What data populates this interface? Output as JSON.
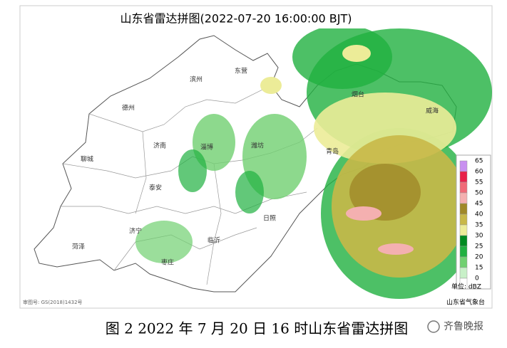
{
  "title": "山东省雷达拼图(2022-07-20 16:00:00 BJT)",
  "cities": [
    "滨州",
    "东营",
    "德州",
    "烟台",
    "威海",
    "济南",
    "淄博",
    "潍坊",
    "聊城",
    "泰安",
    "青岛",
    "日照",
    "济宁",
    "临沂",
    "菏泽",
    "枣庄"
  ],
  "legend": {
    "unit": "单位: dBZ",
    "levels": [
      {
        "value": 65,
        "color": "#c890f0"
      },
      {
        "value": 60,
        "color": "#e8204a"
      },
      {
        "value": 55,
        "color": "#f06a78"
      },
      {
        "value": 50,
        "color": "#f4b0b0"
      },
      {
        "value": 45,
        "color": "#a08828"
      },
      {
        "value": 40,
        "color": "#c8b848"
      },
      {
        "value": 35,
        "color": "#ecec98"
      },
      {
        "value": 30,
        "color": "#008a20"
      },
      {
        "value": 25,
        "color": "#20b040"
      },
      {
        "value": 20,
        "color": "#70d070"
      },
      {
        "value": 15,
        "color": "#c8f0c8"
      },
      {
        "value": 0,
        "color": "#ffffff"
      }
    ]
  },
  "source": "山东省气象台",
  "map_approval": "审图号: GS(2018)1432号",
  "caption": "图 2 2022 年 7 月 20 日 16 时山东省雷达拼图",
  "watermark": "齐鲁晚报"
}
